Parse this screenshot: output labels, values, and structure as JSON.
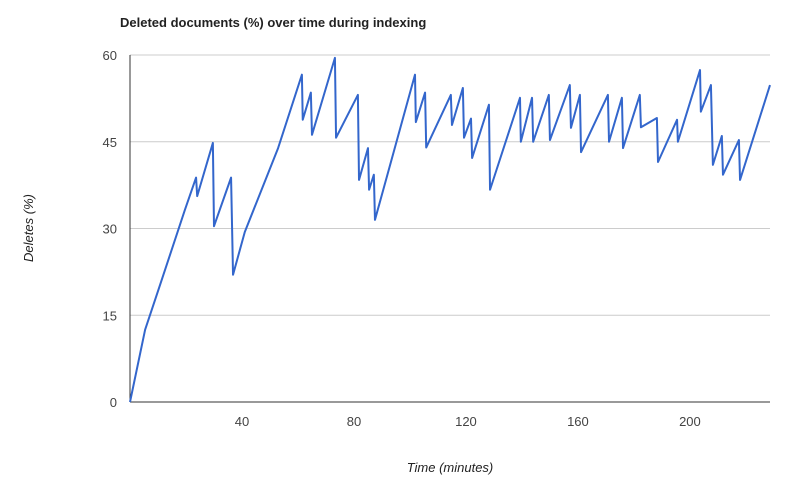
{
  "chart_data": {
    "type": "line",
    "title": "Deleted documents (%) over time during indexing",
    "x_label": "Time (minutes)",
    "y_label": "Deletes (%)",
    "x": [
      0,
      5.4,
      10.7,
      19.6,
      23.6,
      24,
      29.6,
      30,
      36.1,
      36.8,
      41,
      52.9,
      61.4,
      61.7,
      64.6,
      65,
      73.2,
      73.6,
      81.4,
      81.8,
      85,
      85.4,
      87.1,
      87.5,
      101.8,
      102.1,
      105.4,
      105.8,
      114.6,
      115,
      118.9,
      119.3,
      121.8,
      122.2,
      128.2,
      128.6,
      139.3,
      139.6,
      143.6,
      144,
      149.6,
      150,
      157.1,
      157.5,
      160.7,
      161.1,
      170.7,
      171.1,
      175.7,
      176.1,
      182.1,
      182.5,
      188.2,
      188.6,
      195.4,
      195.7,
      203.6,
      203.9,
      207.5,
      208.2,
      211.4,
      211.8,
      217.5,
      217.9,
      228.6
    ],
    "series": [
      {
        "color": "#3366cc",
        "values": [
          0,
          12.5,
          20.2,
          33.2,
          38.8,
          35.6,
          44.8,
          30.4,
          38.8,
          22,
          29.4,
          43.9,
          56.6,
          48.8,
          53.5,
          46.2,
          59.5,
          45.7,
          53.1,
          38.4,
          43.9,
          36.7,
          39.3,
          31.5,
          56.6,
          48.4,
          53.5,
          44,
          53.1,
          47.9,
          54.3,
          45.7,
          49,
          42.2,
          51.4,
          36.7,
          52.6,
          45,
          52.6,
          45,
          53.1,
          45.3,
          54.8,
          47.4,
          53.1,
          43.2,
          53.1,
          45,
          52.6,
          43.9,
          53.1,
          47.5,
          49.1,
          41.5,
          48.8,
          45,
          57.4,
          50.2,
          54.8,
          41,
          46,
          39.3,
          45.3,
          38.4,
          54.8
        ]
      }
    ],
    "xlim": [
      0,
      228.6
    ],
    "xticks": [
      40,
      80,
      120,
      160,
      200
    ],
    "ylim": [
      0,
      60
    ],
    "yticks": [
      0,
      15,
      30,
      45,
      60
    ],
    "grid": true
  }
}
